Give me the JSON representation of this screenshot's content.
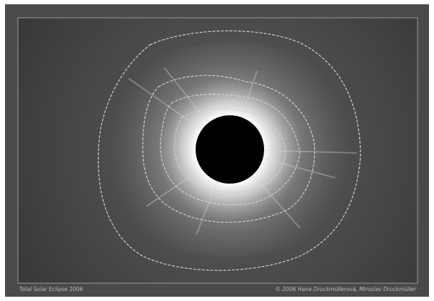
{
  "caption": {
    "left": "Total Solar Eclipse 2006",
    "right": "© 2006 Hana Druckmüllerová, Miroslav Druckmüller"
  }
}
